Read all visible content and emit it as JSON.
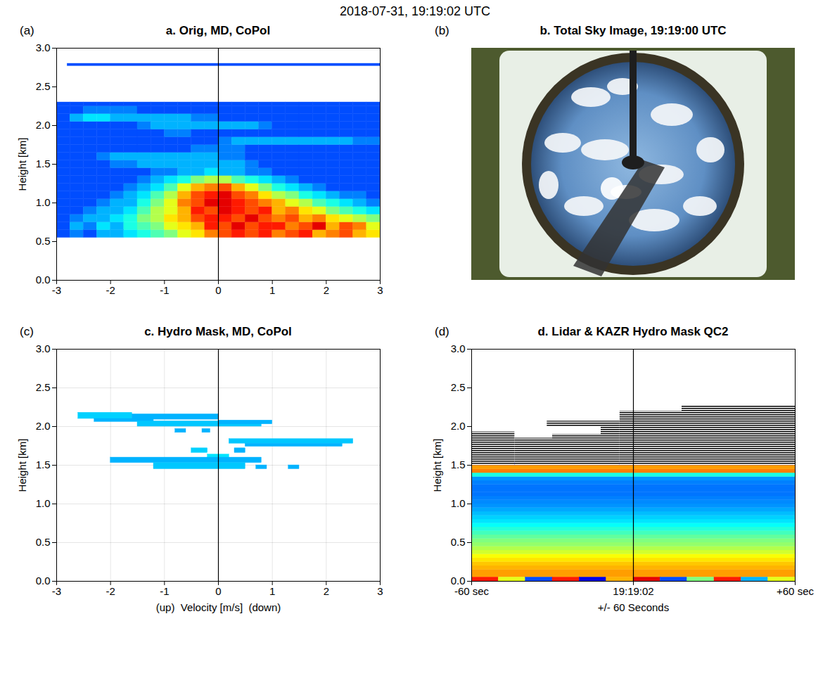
{
  "title": "2018-07-31, 19:19:02 UTC",
  "chart_data": [
    {
      "type": "heatmap",
      "letter": "(a)",
      "title": "a. Orig, MD, CoPol",
      "ylabel": "Height [km]",
      "xlim": [
        -3,
        3
      ],
      "xticks": [
        -3,
        -2,
        -1,
        0,
        1,
        2,
        3
      ],
      "ylim": [
        0,
        3
      ],
      "yticks": [
        {
          "value": 0,
          "label": "0.0"
        },
        {
          "value": 0.5,
          "label": "0.5"
        },
        {
          "value": 1,
          "label": "1.0"
        },
        {
          "value": 1.5,
          "label": "1.5"
        },
        {
          "value": 2,
          "label": "2.0"
        },
        {
          "value": 2.5,
          "label": "2.5"
        },
        {
          "value": 3,
          "label": "3.0"
        }
      ],
      "grid": false,
      "color": "jet",
      "zlim": [
        0,
        1
      ],
      "reference_x": 0,
      "velocity_edges": [
        -3,
        -2.75,
        -2.5,
        -2.25,
        -2,
        -1.75,
        -1.5,
        -1.25,
        -1,
        -0.75,
        -0.5,
        -0.25,
        0,
        0.25,
        0.5,
        0.75,
        1,
        1.25,
        1.5,
        1.75,
        2,
        2.25,
        2.5,
        2.75,
        3
      ],
      "height_edges": [
        0.55,
        0.65,
        0.75,
        0.85,
        0.95,
        1.05,
        1.15,
        1.25,
        1.35,
        1.45,
        1.55,
        1.65,
        1.75,
        1.85,
        1.95,
        2.05,
        2.15,
        2.25,
        2.3
      ],
      "values": [
        [
          0.2,
          0.25,
          0.2,
          0.3,
          0.3,
          0.35,
          0.4,
          0.45,
          0.5,
          0.6,
          0.65,
          0.75,
          0.8,
          0.85,
          0.8,
          0.85,
          0.75,
          0.8,
          0.85,
          0.7,
          0.75,
          0.8,
          0.7,
          0.65
        ],
        [
          0.2,
          0.3,
          0.25,
          0.35,
          0.3,
          0.4,
          0.45,
          0.5,
          0.6,
          0.65,
          0.7,
          0.85,
          0.8,
          0.9,
          0.8,
          0.85,
          0.85,
          0.75,
          0.8,
          0.9,
          0.7,
          0.8,
          0.75,
          0.6
        ],
        [
          0.2,
          0.25,
          0.3,
          0.3,
          0.35,
          0.4,
          0.5,
          0.55,
          0.65,
          0.7,
          0.8,
          0.85,
          0.85,
          0.8,
          0.9,
          0.8,
          0.75,
          0.8,
          0.7,
          0.75,
          0.65,
          0.6,
          0.55,
          0.5
        ],
        [
          0.2,
          0.2,
          0.25,
          0.3,
          0.3,
          0.35,
          0.45,
          0.55,
          0.6,
          0.7,
          0.85,
          0.8,
          0.9,
          0.85,
          0.8,
          0.85,
          0.7,
          0.75,
          0.65,
          0.6,
          0.5,
          0.45,
          0.4,
          0.35
        ],
        [
          0.2,
          0.2,
          0.2,
          0.25,
          0.3,
          0.3,
          0.4,
          0.5,
          0.6,
          0.75,
          0.8,
          0.9,
          0.9,
          0.85,
          0.8,
          0.75,
          0.7,
          0.6,
          0.55,
          0.45,
          0.4,
          0.35,
          0.3,
          0.25
        ],
        [
          0.2,
          0.2,
          0.2,
          0.2,
          0.25,
          0.3,
          0.35,
          0.45,
          0.55,
          0.7,
          0.8,
          0.85,
          0.9,
          0.8,
          0.75,
          0.65,
          0.55,
          0.5,
          0.4,
          0.35,
          0.3,
          0.25,
          0.25,
          0.2
        ],
        [
          0.2,
          0.2,
          0.2,
          0.2,
          0.2,
          0.25,
          0.3,
          0.35,
          0.45,
          0.6,
          0.7,
          0.75,
          0.8,
          0.7,
          0.6,
          0.5,
          0.4,
          0.35,
          0.3,
          0.25,
          0.2,
          0.2,
          0.2,
          0.2
        ],
        [
          0.2,
          0.2,
          0.2,
          0.2,
          0.2,
          0.2,
          0.25,
          0.3,
          0.35,
          0.4,
          0.5,
          0.55,
          0.55,
          0.45,
          0.4,
          0.35,
          0.3,
          0.25,
          0.2,
          0.2,
          0.2,
          0.2,
          0.2,
          0.2
        ],
        [
          0.2,
          0.2,
          0.2,
          0.2,
          0.2,
          0.2,
          0.2,
          0.25,
          0.25,
          0.3,
          0.3,
          0.35,
          0.3,
          0.3,
          0.25,
          0.25,
          0.2,
          0.2,
          0.2,
          0.2,
          0.2,
          0.2,
          0.2,
          0.2
        ],
        [
          0.2,
          0.2,
          0.2,
          0.2,
          0.25,
          0.25,
          0.3,
          0.3,
          0.3,
          0.3,
          0.3,
          0.3,
          0.3,
          0.3,
          0.25,
          0.2,
          0.2,
          0.2,
          0.2,
          0.2,
          0.2,
          0.2,
          0.2,
          0.2
        ],
        [
          0.2,
          0.2,
          0.2,
          0.25,
          0.3,
          0.3,
          0.3,
          0.3,
          0.3,
          0.3,
          0.3,
          0.3,
          0.25,
          0.25,
          0.2,
          0.2,
          0.2,
          0.2,
          0.2,
          0.2,
          0.2,
          0.2,
          0.2,
          0.2
        ],
        [
          0.2,
          0.2,
          0.2,
          0.2,
          0.2,
          0.2,
          0.2,
          0.2,
          0.2,
          0.2,
          0.25,
          0.25,
          0.25,
          0.25,
          0.2,
          0.2,
          0.2,
          0.2,
          0.2,
          0.2,
          0.2,
          0.2,
          0.2,
          0.2
        ],
        [
          0.2,
          0.2,
          0.2,
          0.2,
          0.2,
          0.2,
          0.2,
          0.2,
          0.2,
          0.2,
          0.2,
          0.2,
          0.25,
          0.3,
          0.3,
          0.3,
          0.3,
          0.3,
          0.3,
          0.3,
          0.3,
          0.3,
          0.25,
          0.25
        ],
        [
          0.2,
          0.2,
          0.2,
          0.2,
          0.2,
          0.2,
          0.2,
          0.2,
          0.25,
          0.25,
          0.2,
          0.2,
          0.2,
          0.2,
          0.2,
          0.2,
          0.2,
          0.2,
          0.2,
          0.2,
          0.2,
          0.2,
          0.2,
          0.2
        ],
        [
          0.2,
          0.2,
          0.2,
          0.2,
          0.2,
          0.2,
          0.25,
          0.3,
          0.3,
          0.3,
          0.3,
          0.3,
          0.3,
          0.3,
          0.3,
          0.25,
          0.2,
          0.2,
          0.2,
          0.2,
          0.2,
          0.2,
          0.2,
          0.2
        ],
        [
          0.2,
          0.3,
          0.35,
          0.35,
          0.3,
          0.3,
          0.3,
          0.3,
          0.3,
          0.3,
          0.25,
          0.25,
          0.2,
          0.2,
          0.2,
          0.2,
          0.2,
          0.2,
          0.2,
          0.2,
          0.2,
          0.2,
          0.2,
          0.2
        ],
        [
          0.2,
          0.2,
          0.25,
          0.25,
          0.25,
          0.25,
          0.2,
          0.2,
          0.2,
          0.2,
          0.2,
          0.2,
          0.2,
          0.2,
          0.2,
          0.2,
          0.2,
          0.2,
          0.2,
          0.2,
          0.2,
          0.2,
          0.2,
          0.2
        ],
        [
          0.2,
          0.2,
          0.2,
          0.2,
          0.2,
          0.2,
          0.2,
          0.2,
          0.2,
          0.2,
          0.2,
          0.2,
          0.2,
          0.2,
          0.2,
          0.2,
          0.2,
          0.2,
          0.2,
          0.2,
          0.2,
          0.2,
          0.2,
          0.2
        ]
      ],
      "bands": [
        {
          "velocity": [
            -2.8,
            3
          ],
          "height": [
            2.77,
            2.8
          ],
          "value": 0.2
        }
      ]
    },
    {
      "type": "image",
      "letter": "(b)",
      "title": "b. Total Sky Image, 19:19:00 UTC"
    },
    {
      "type": "heatmap",
      "letter": "(c)",
      "title": "c. Hydro Mask, MD, CoPol",
      "xlabel": "(up)  Velocity [m/s]  (down)",
      "ylabel": "Height [km]",
      "xlim": [
        -3,
        3
      ],
      "xticks": [
        -3,
        -2,
        -1,
        0,
        1,
        2,
        3
      ],
      "ylim": [
        0,
        3
      ],
      "yticks": [
        {
          "value": 0,
          "label": "0.0"
        },
        {
          "value": 0.5,
          "label": "0.5"
        },
        {
          "value": 1,
          "label": "1.0"
        },
        {
          "value": 1.5,
          "label": "1.5"
        },
        {
          "value": 2,
          "label": "2.0"
        },
        {
          "value": 2.5,
          "label": "2.5"
        },
        {
          "value": 3,
          "label": "3.0"
        }
      ],
      "grid": true,
      "color": "jet",
      "zlim": [
        0,
        1
      ],
      "reference_x": 0,
      "cells": [
        {
          "velocity": [
            -2.6,
            -1.6
          ],
          "height": [
            2.1,
            2.18
          ],
          "value": 0.33
        },
        {
          "velocity": [
            -1.6,
            0
          ],
          "height": [
            2.09,
            2.16
          ],
          "value": 0.3
        },
        {
          "velocity": [
            -2.3,
            -1.2
          ],
          "height": [
            2.06,
            2.1
          ],
          "value": 0.3
        },
        {
          "velocity": [
            -1.5,
            0.8
          ],
          "height": [
            2,
            2.07
          ],
          "value": 0.32
        },
        {
          "velocity": [
            0,
            1
          ],
          "height": [
            2.03,
            2.08
          ],
          "value": 0.3
        },
        {
          "velocity": [
            -0.8,
            -0.6
          ],
          "height": [
            1.92,
            1.97
          ],
          "value": 0.3
        },
        {
          "velocity": [
            -0.3,
            -0.15
          ],
          "height": [
            1.92,
            1.97
          ],
          "value": 0.3
        },
        {
          "velocity": [
            0.2,
            2.5
          ],
          "height": [
            1.78,
            1.84
          ],
          "value": 0.32
        },
        {
          "velocity": [
            0.5,
            2.3
          ],
          "height": [
            1.74,
            1.78
          ],
          "value": 0.3
        },
        {
          "velocity": [
            -0.5,
            -0.2
          ],
          "height": [
            1.66,
            1.72
          ],
          "value": 0.33
        },
        {
          "velocity": [
            0.3,
            0.5
          ],
          "height": [
            1.66,
            1.72
          ],
          "value": 0.3
        },
        {
          "velocity": [
            -0.2,
            0.2
          ],
          "height": [
            1.6,
            1.64
          ],
          "value": 0.35
        },
        {
          "velocity": [
            -2,
            0.8
          ],
          "height": [
            1.53,
            1.6
          ],
          "value": 0.3
        },
        {
          "velocity": [
            -1.2,
            0.5
          ],
          "height": [
            1.45,
            1.53
          ],
          "value": 0.32
        },
        {
          "velocity": [
            0.7,
            0.9
          ],
          "height": [
            1.45,
            1.5
          ],
          "value": 0.3
        },
        {
          "velocity": [
            1.3,
            1.5
          ],
          "height": [
            1.45,
            1.5
          ],
          "value": 0.3
        }
      ]
    },
    {
      "type": "time_height",
      "letter": "(d)",
      "title": "d. Lidar & KAZR Hydro Mask QC2",
      "xlabel": "+/- 60 Seconds",
      "ylabel": "Height [km]",
      "xlim": [
        -60,
        60
      ],
      "xticks": [
        {
          "value": -60,
          "label": "-60 sec"
        },
        {
          "value": 0,
          "label": "19:19:02"
        },
        {
          "value": 60,
          "label": "+60 sec"
        }
      ],
      "ylim": [
        0,
        3
      ],
      "yticks": [
        {
          "value": 0,
          "label": "0.0"
        },
        {
          "value": 0.5,
          "label": "0.5"
        },
        {
          "value": 1,
          "label": "1.0"
        },
        {
          "value": 1.5,
          "label": "1.5"
        },
        {
          "value": 2,
          "label": "2.0"
        },
        {
          "value": 2.5,
          "label": "2.5"
        },
        {
          "value": 3,
          "label": "3.0"
        }
      ],
      "grid": false,
      "color": "jet",
      "zlim": [
        0,
        1
      ],
      "reference_x": 0,
      "profile": {
        "height_edges": [
          0.05,
          0.1,
          0.15,
          0.2,
          0.25,
          0.3,
          0.35,
          0.4,
          0.45,
          0.5,
          0.55,
          0.6,
          0.65,
          0.7,
          0.75,
          0.8,
          0.85,
          0.9,
          0.95,
          1,
          1.05,
          1.1,
          1.15,
          1.2,
          1.25,
          1.3,
          1.35,
          1.4,
          1.45,
          1.5,
          1.53
        ],
        "values": [
          0.72,
          0.72,
          0.7,
          0.68,
          0.65,
          0.62,
          0.58,
          0.55,
          0.52,
          0.5,
          0.47,
          0.44,
          0.41,
          0.38,
          0.35,
          0.33,
          0.31,
          0.29,
          0.27,
          0.26,
          0.25,
          0.24,
          0.24,
          0.24,
          0.25,
          0.27,
          0.4,
          0.75,
          0.72,
          0.1
        ]
      },
      "surface": {
        "time_edges": [
          -60,
          -50,
          -40,
          -30,
          -20,
          -10,
          0,
          10,
          20,
          30,
          40,
          50,
          60
        ],
        "height": [
          0,
          0.05
        ],
        "values": [
          0.85,
          0.6,
          0.2,
          0.85,
          0.1,
          0.7,
          0.9,
          0.2,
          0.5,
          0.85,
          0.3,
          0.6
        ]
      },
      "mask": [
        {
          "time": [
            -60,
            -44
          ],
          "height": [
            1.5,
            1.93
          ]
        },
        {
          "time": [
            -44,
            -30
          ],
          "height": [
            1.5,
            1.85
          ]
        },
        {
          "time": [
            -30,
            -12
          ],
          "height": [
            1.5,
            1.9
          ]
        },
        {
          "time": [
            -32,
            -12
          ],
          "height": [
            2,
            2.07
          ]
        },
        {
          "time": [
            -12,
            -5
          ],
          "height": [
            1.5,
            2.07
          ]
        },
        {
          "time": [
            -5,
            18
          ],
          "height": [
            1.5,
            2.2
          ]
        },
        {
          "time": [
            18,
            60
          ],
          "height": [
            1.5,
            2.27
          ]
        }
      ]
    }
  ]
}
